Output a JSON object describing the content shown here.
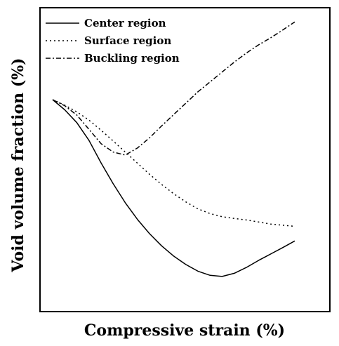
{
  "chart_data": {
    "type": "line",
    "title": "",
    "xlabel": "Compressive strain (%)",
    "ylabel": "Void volume fraction (%)",
    "xlim": [
      0,
      100
    ],
    "ylim": [
      0,
      100
    ],
    "grid": false,
    "ticks": false,
    "legend_position": "top-left",
    "series": [
      {
        "name": "Center region",
        "dash": "solid",
        "color": "#000000",
        "x": [
          0,
          5,
          10,
          15,
          20,
          25,
          30,
          35,
          40,
          45,
          50,
          55,
          60,
          65,
          70,
          75,
          80,
          85,
          90,
          95,
          100
        ],
        "y": [
          70.6,
          67.1,
          62.7,
          56.6,
          48.9,
          41.7,
          35.2,
          29.5,
          24.6,
          20.4,
          16.9,
          14.0,
          11.7,
          10.3,
          9.9,
          11.0,
          13.0,
          15.4,
          17.6,
          19.8,
          22.1
        ]
      },
      {
        "name": "Surface region",
        "dash": "dotted",
        "color": "#000000",
        "x": [
          0,
          5,
          10,
          15,
          20,
          25,
          30,
          35,
          40,
          45,
          50,
          55,
          60,
          65,
          70,
          75,
          80,
          85,
          90,
          95,
          100
        ],
        "y": [
          70.6,
          68.7,
          66.4,
          63.6,
          60.1,
          56.4,
          52.6,
          48.8,
          45.0,
          41.5,
          38.3,
          35.5,
          33.1,
          31.5,
          30.4,
          29.8,
          29.3,
          28.6,
          27.9,
          27.5,
          27.1
        ]
      },
      {
        "name": "Buckling region",
        "dash": "dashdot",
        "color": "#000000",
        "x": [
          0,
          5,
          10,
          15,
          20,
          25,
          30,
          35,
          40,
          45,
          50,
          55,
          60,
          65,
          70,
          75,
          80,
          85,
          90,
          95,
          100
        ],
        "y": [
          70.6,
          68.5,
          65.3,
          60.4,
          55.5,
          52.6,
          51.6,
          54.0,
          57.5,
          61.6,
          65.5,
          69.4,
          73.3,
          76.7,
          80.1,
          83.5,
          86.6,
          89.4,
          91.8,
          94.5,
          97.3
        ]
      }
    ]
  }
}
